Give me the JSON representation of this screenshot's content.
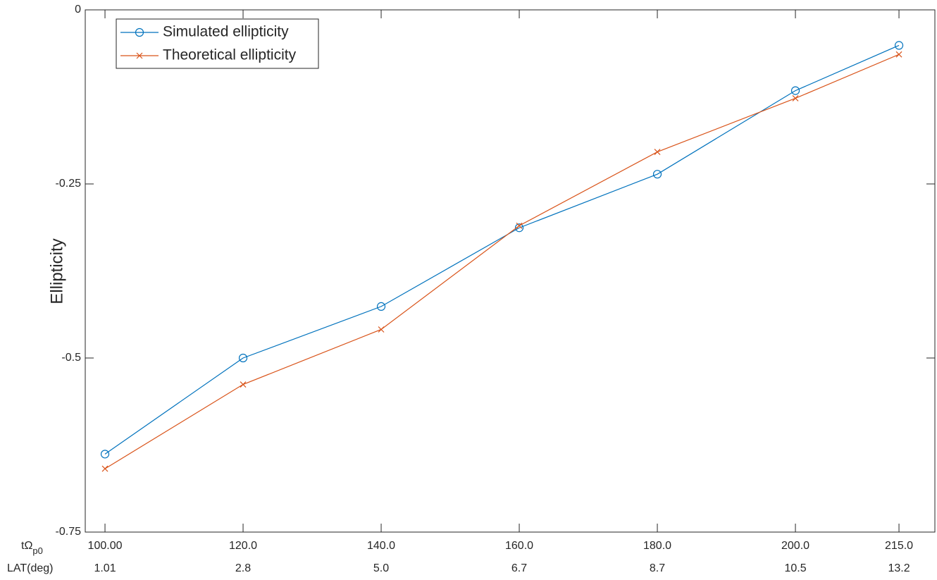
{
  "chart_data": {
    "type": "line",
    "ylabel": "Ellipticity",
    "x_label": "tΩ",
    "x_label_subscript": "p0",
    "x2_label": "LAT(deg)",
    "x": [
      100,
      120,
      140,
      160,
      180,
      200,
      215
    ],
    "x2_tick_labels": [
      "1.01",
      "2.8",
      "5.0",
      "6.7",
      "8.7",
      "10.5",
      "13.2"
    ],
    "series": [
      {
        "name": "Simulated ellipticity",
        "color": "#0072bd",
        "marker": "circle",
        "values": [
          -0.638,
          -0.5,
          -0.426,
          -0.313,
          -0.236,
          -0.116,
          -0.051
        ]
      },
      {
        "name": "Theoretical ellipticity",
        "color": "#d95319",
        "marker": "x",
        "values": [
          -0.659,
          -0.538,
          -0.459,
          -0.31,
          -0.204,
          -0.127,
          -0.064
        ]
      }
    ],
    "xlim": [
      97.14,
      220.2
    ],
    "xticks": [
      {
        "value": 100,
        "label": "100.00"
      },
      {
        "value": 120,
        "label": "120.0"
      },
      {
        "value": 140,
        "label": "140.0"
      },
      {
        "value": 160,
        "label": "160.0"
      },
      {
        "value": 180,
        "label": "180.0"
      },
      {
        "value": 200,
        "label": "200.0"
      },
      {
        "value": 215,
        "label": "215.0"
      }
    ],
    "ylim": [
      -0.75,
      0
    ],
    "yticks": [
      0,
      -0.25,
      -0.5,
      -0.75
    ],
    "grid": false,
    "legend": "top-left"
  }
}
